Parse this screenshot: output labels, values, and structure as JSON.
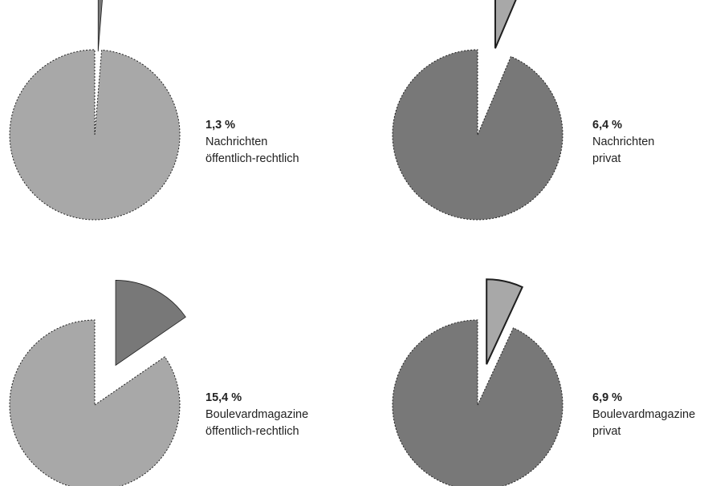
{
  "colors": {
    "light": "#a8a8a8",
    "dark": "#787878",
    "outline": "#1e1e1e"
  },
  "chart_data": [
    {
      "type": "pie",
      "slices": [
        {
          "label": "Nachrichten öffentlich-rechtlich",
          "value": 1.3,
          "exploded": true
        },
        {
          "label": "",
          "value": 98.7,
          "exploded": false
        }
      ],
      "value_label": "1,3 %",
      "text_lines": [
        "Nachrichten",
        "öffentlich-rechtlich"
      ],
      "colors": {
        "slice": "#787878",
        "rest": "#a8a8a8"
      }
    },
    {
      "type": "pie",
      "slices": [
        {
          "label": "Nachrichten privat",
          "value": 6.4,
          "exploded": true
        },
        {
          "label": "",
          "value": 93.6,
          "exploded": false
        }
      ],
      "value_label": "6,4 %",
      "text_lines": [
        "Nachrichten",
        "privat"
      ],
      "colors": {
        "slice": "#a8a8a8",
        "rest": "#787878"
      }
    },
    {
      "type": "pie",
      "slices": [
        {
          "label": "Boulevardmagazine öffentlich-rechtlich",
          "value": 15.4,
          "exploded": true
        },
        {
          "label": "",
          "value": 84.6,
          "exploded": false
        }
      ],
      "value_label": "15,4 %",
      "text_lines": [
        "Boulevardmagazine",
        "öffentlich-rechtlich"
      ],
      "colors": {
        "slice": "#787878",
        "rest": "#a8a8a8"
      }
    },
    {
      "type": "pie",
      "slices": [
        {
          "label": "Boulevardmagazine privat",
          "value": 6.9,
          "exploded": true
        },
        {
          "label": "",
          "value": 93.1,
          "exploded": false
        }
      ],
      "value_label": "6,9 %",
      "text_lines": [
        "Boulevardmagazine",
        "privat"
      ],
      "colors": {
        "slice": "#a8a8a8",
        "rest": "#787878"
      }
    }
  ]
}
